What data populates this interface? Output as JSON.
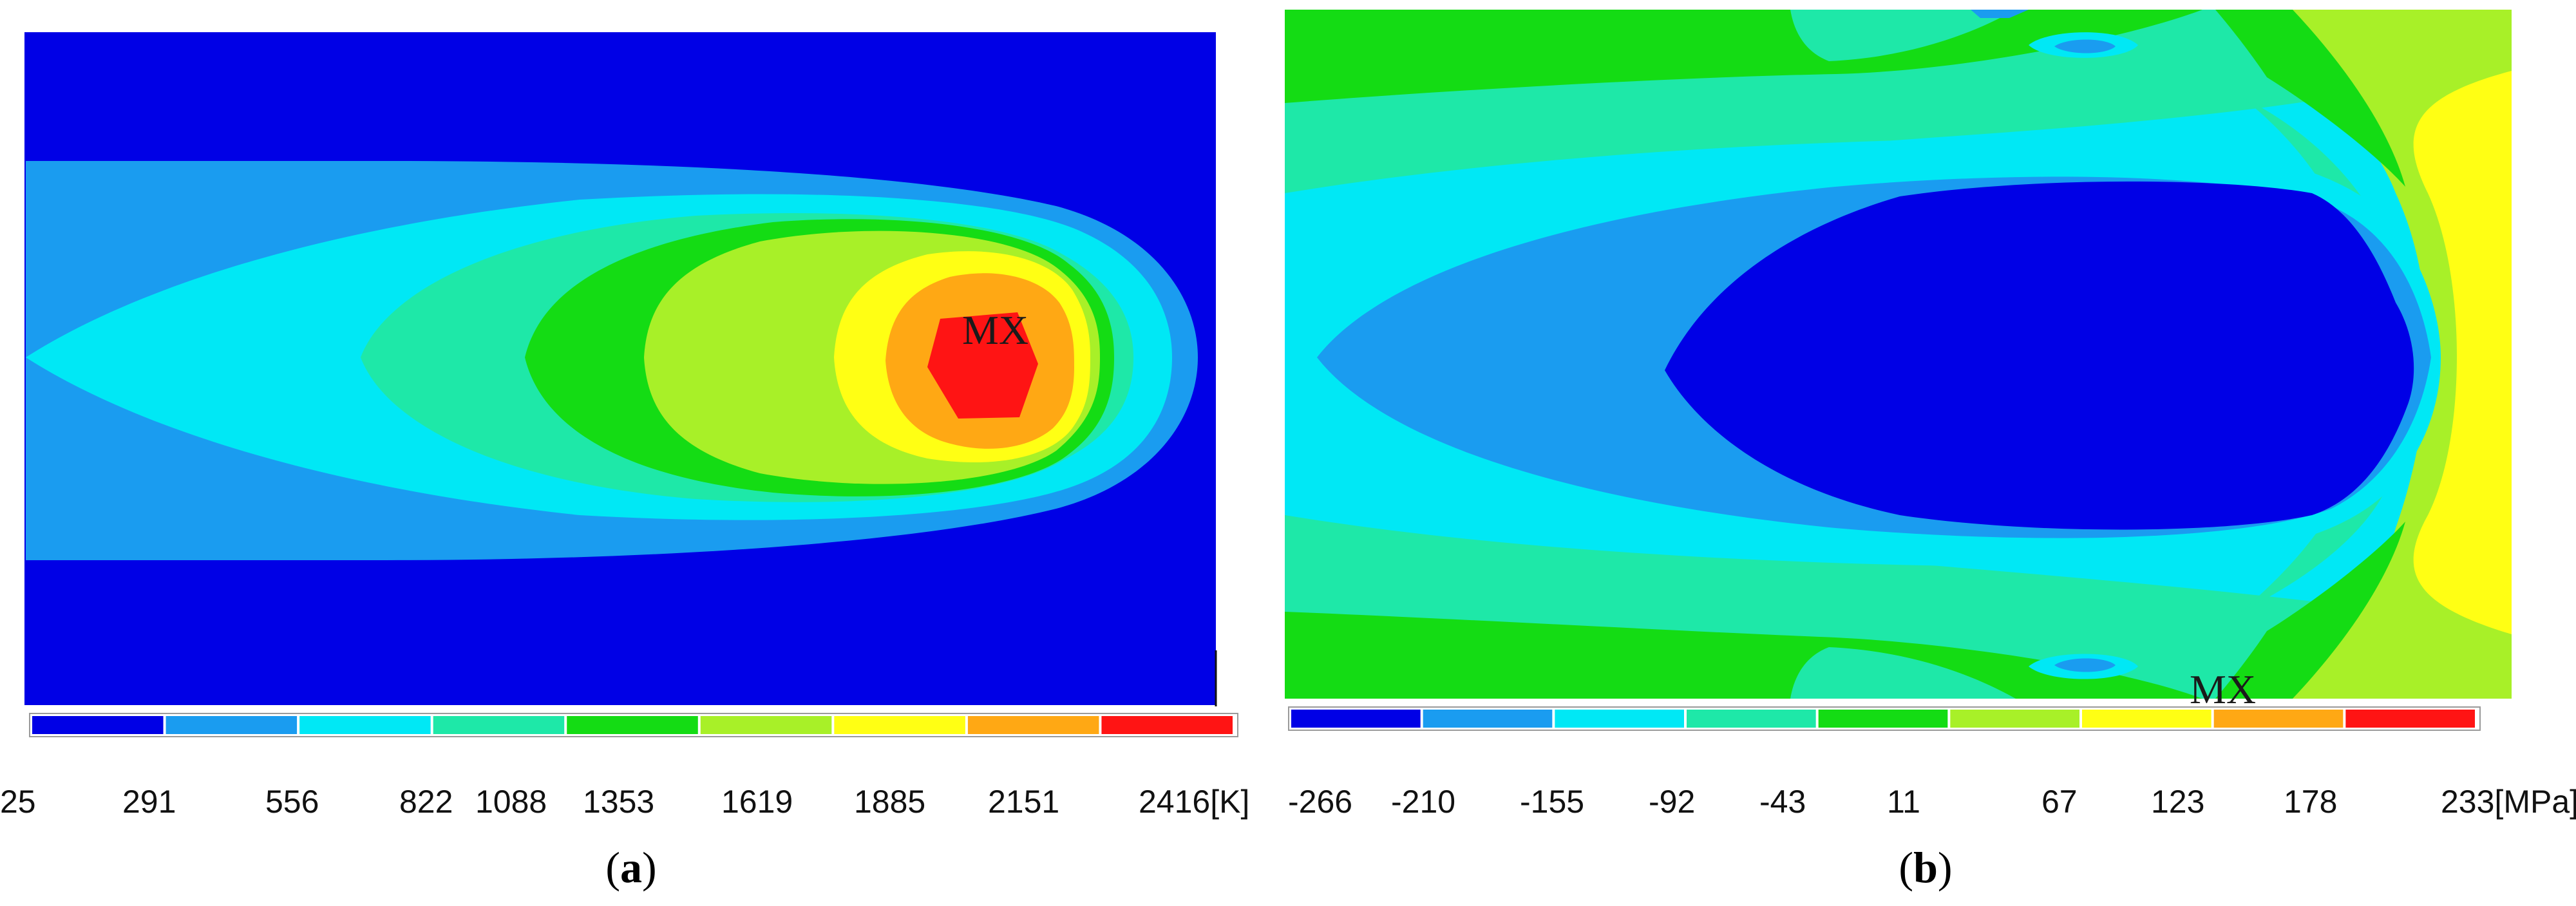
{
  "panels": [
    {
      "id": "a",
      "caption_open": "(",
      "caption_letter": "a",
      "caption_close": ")",
      "marker": "MX",
      "legend": {
        "colors": [
          "#0000e6",
          "#1a9cf0",
          "#00e8f5",
          "#1ee8a8",
          "#14dc14",
          "#a8f028",
          "#ffff14",
          "#ffa814",
          "#ff1414"
        ],
        "ticks": [
          "25",
          "291",
          "556",
          "822",
          "1088",
          "1353",
          "1619",
          "1885",
          "2151",
          "2416[K]"
        ]
      }
    },
    {
      "id": "b",
      "caption_open": "(",
      "caption_letter": "b",
      "caption_close": ")",
      "marker": "MX",
      "legend": {
        "colors": [
          "#0000e6",
          "#1a9cf0",
          "#00e8f5",
          "#1ee8a8",
          "#14dc14",
          "#a8f028",
          "#ffff14",
          "#ffa814",
          "#ff1414"
        ],
        "ticks": [
          "-266",
          "-210",
          "-155",
          "-92",
          "-43",
          "11",
          "67",
          "123",
          "178",
          "233[MPa]"
        ]
      }
    }
  ]
}
